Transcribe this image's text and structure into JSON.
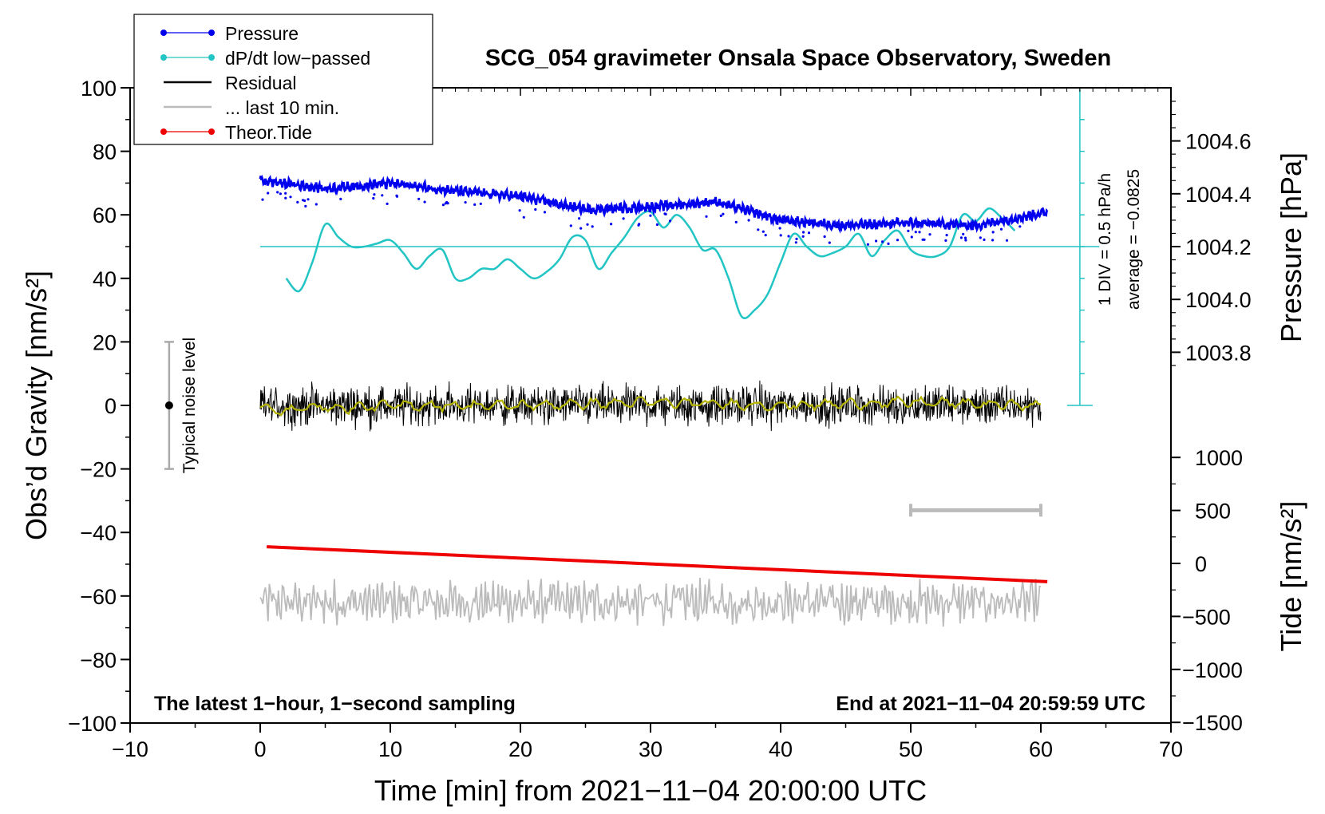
{
  "chart_data": {
    "type": "line",
    "title": "SCG_054 gravimeter Onsala Space Observatory, Sweden",
    "xlabel": "Time [min] from 2021−11−04 20:00:00 UTC",
    "xlim": [
      -10,
      70
    ],
    "xticks": [
      "−10",
      "0",
      "10",
      "20",
      "30",
      "40",
      "50",
      "60",
      "70"
    ],
    "ylabel_left": "Obs’d Gravity [nm/s²]",
    "ylim_left": [
      -100,
      100
    ],
    "yticks_left": [
      "−100",
      "−80",
      "−60",
      "−40",
      "−20",
      "0",
      "20",
      "40",
      "60",
      "80",
      "100"
    ],
    "ylabel_right_top": "Pressure [hPa]",
    "yticks_right_top": [
      "1003.8",
      "1004.0",
      "1004.2",
      "1004.4",
      "1004.6"
    ],
    "ylabel_right_bottom": "Tide [nm/s²]",
    "yticks_right_bottom": [
      "−1500",
      "−1000",
      "−500",
      "0",
      "500",
      "1000"
    ],
    "legend_position": "top-left",
    "legend": [
      {
        "label": "Pressure",
        "color": "#0000ee",
        "marker": "dot"
      },
      {
        "label": "dP/dt low−passed",
        "color": "#22c4c4",
        "marker": "dot"
      },
      {
        "label": "Residual",
        "color": "#000000",
        "marker": "line"
      },
      {
        "label": "... last 10 min.",
        "color": "#bbbbbb",
        "marker": "line"
      },
      {
        "label": "Theor.Tide",
        "color": "#ee0000",
        "marker": "dot"
      }
    ],
    "series": [
      {
        "name": "Pressure",
        "unit": "hPa",
        "x": [
          0,
          5,
          10,
          15,
          20,
          25,
          30,
          35,
          40,
          45,
          50,
          55,
          60.5
        ],
        "y": [
          1004.45,
          1004.42,
          1004.44,
          1004.41,
          1004.39,
          1004.34,
          1004.35,
          1004.37,
          1004.3,
          1004.28,
          1004.29,
          1004.28,
          1004.33
        ]
      },
      {
        "name": "dP/dt low−passed",
        "unit": "gravity-axis units (50 = zero)",
        "x": [
          2,
          3,
          4,
          5,
          6,
          7,
          8,
          9,
          10,
          11,
          12,
          13,
          14,
          15,
          16,
          17,
          18,
          19,
          20,
          21,
          22,
          23,
          24,
          25,
          26,
          27,
          28,
          29,
          30,
          31,
          32,
          33,
          34,
          35,
          36,
          37,
          38,
          39,
          40,
          41,
          42,
          43,
          44,
          45,
          46,
          47,
          48,
          49,
          50,
          51,
          52,
          53,
          54,
          55,
          56,
          57,
          58
        ],
        "y": [
          40,
          36,
          45,
          57,
          53,
          50,
          50,
          51,
          52,
          48,
          43,
          47,
          49,
          40,
          40,
          43,
          43,
          46,
          43,
          40,
          42,
          46,
          53,
          52,
          43,
          48,
          53,
          59,
          61,
          56,
          60,
          56,
          49,
          49,
          40,
          28,
          30,
          35,
          45,
          54,
          50,
          47,
          48,
          50,
          54,
          47,
          52,
          55,
          49,
          47,
          47,
          50,
          60,
          58,
          62,
          59,
          55
        ]
      },
      {
        "name": "Residual",
        "unit": "nm/s²",
        "x": [
          0,
          60
        ],
        "y": [
          0,
          0
        ],
        "noise_amplitude": 10
      },
      {
        "name": "Residual smoothed",
        "unit": "nm/s²",
        "color": "#b4b400",
        "x": [
          0,
          2,
          4,
          6,
          10,
          20,
          30,
          40,
          50,
          60
        ],
        "y": [
          -1,
          -2,
          0,
          -1,
          0,
          0,
          1,
          0,
          1,
          0
        ]
      },
      {
        "name": "... last 10 min.",
        "unit": "nm/s²",
        "x": [
          0,
          60
        ],
        "y": [
          -62,
          -62
        ],
        "noise_amplitude": 7
      },
      {
        "name": "Theor.Tide",
        "unit": "nm/s²",
        "x": [
          0.5,
          60.5
        ],
        "y": [
          -44.5,
          -55.5
        ]
      }
    ],
    "pressure_scale_bar": {
      "label_div": "1 DIV = 0.5 hPa/h",
      "label_avg": "average = −0.0825",
      "x": 63
    },
    "noise_bar": {
      "label": "Typical noise level",
      "x": -7,
      "center": 0,
      "range": [
        -20,
        20
      ]
    },
    "window_bar": {
      "x_range": [
        50,
        60
      ],
      "y": -33
    },
    "annotations": {
      "bottom_left": "The latest 1−hour, 1−second sampling",
      "bottom_right": "End at 2021−11−04 20:59:59 UTC"
    }
  }
}
